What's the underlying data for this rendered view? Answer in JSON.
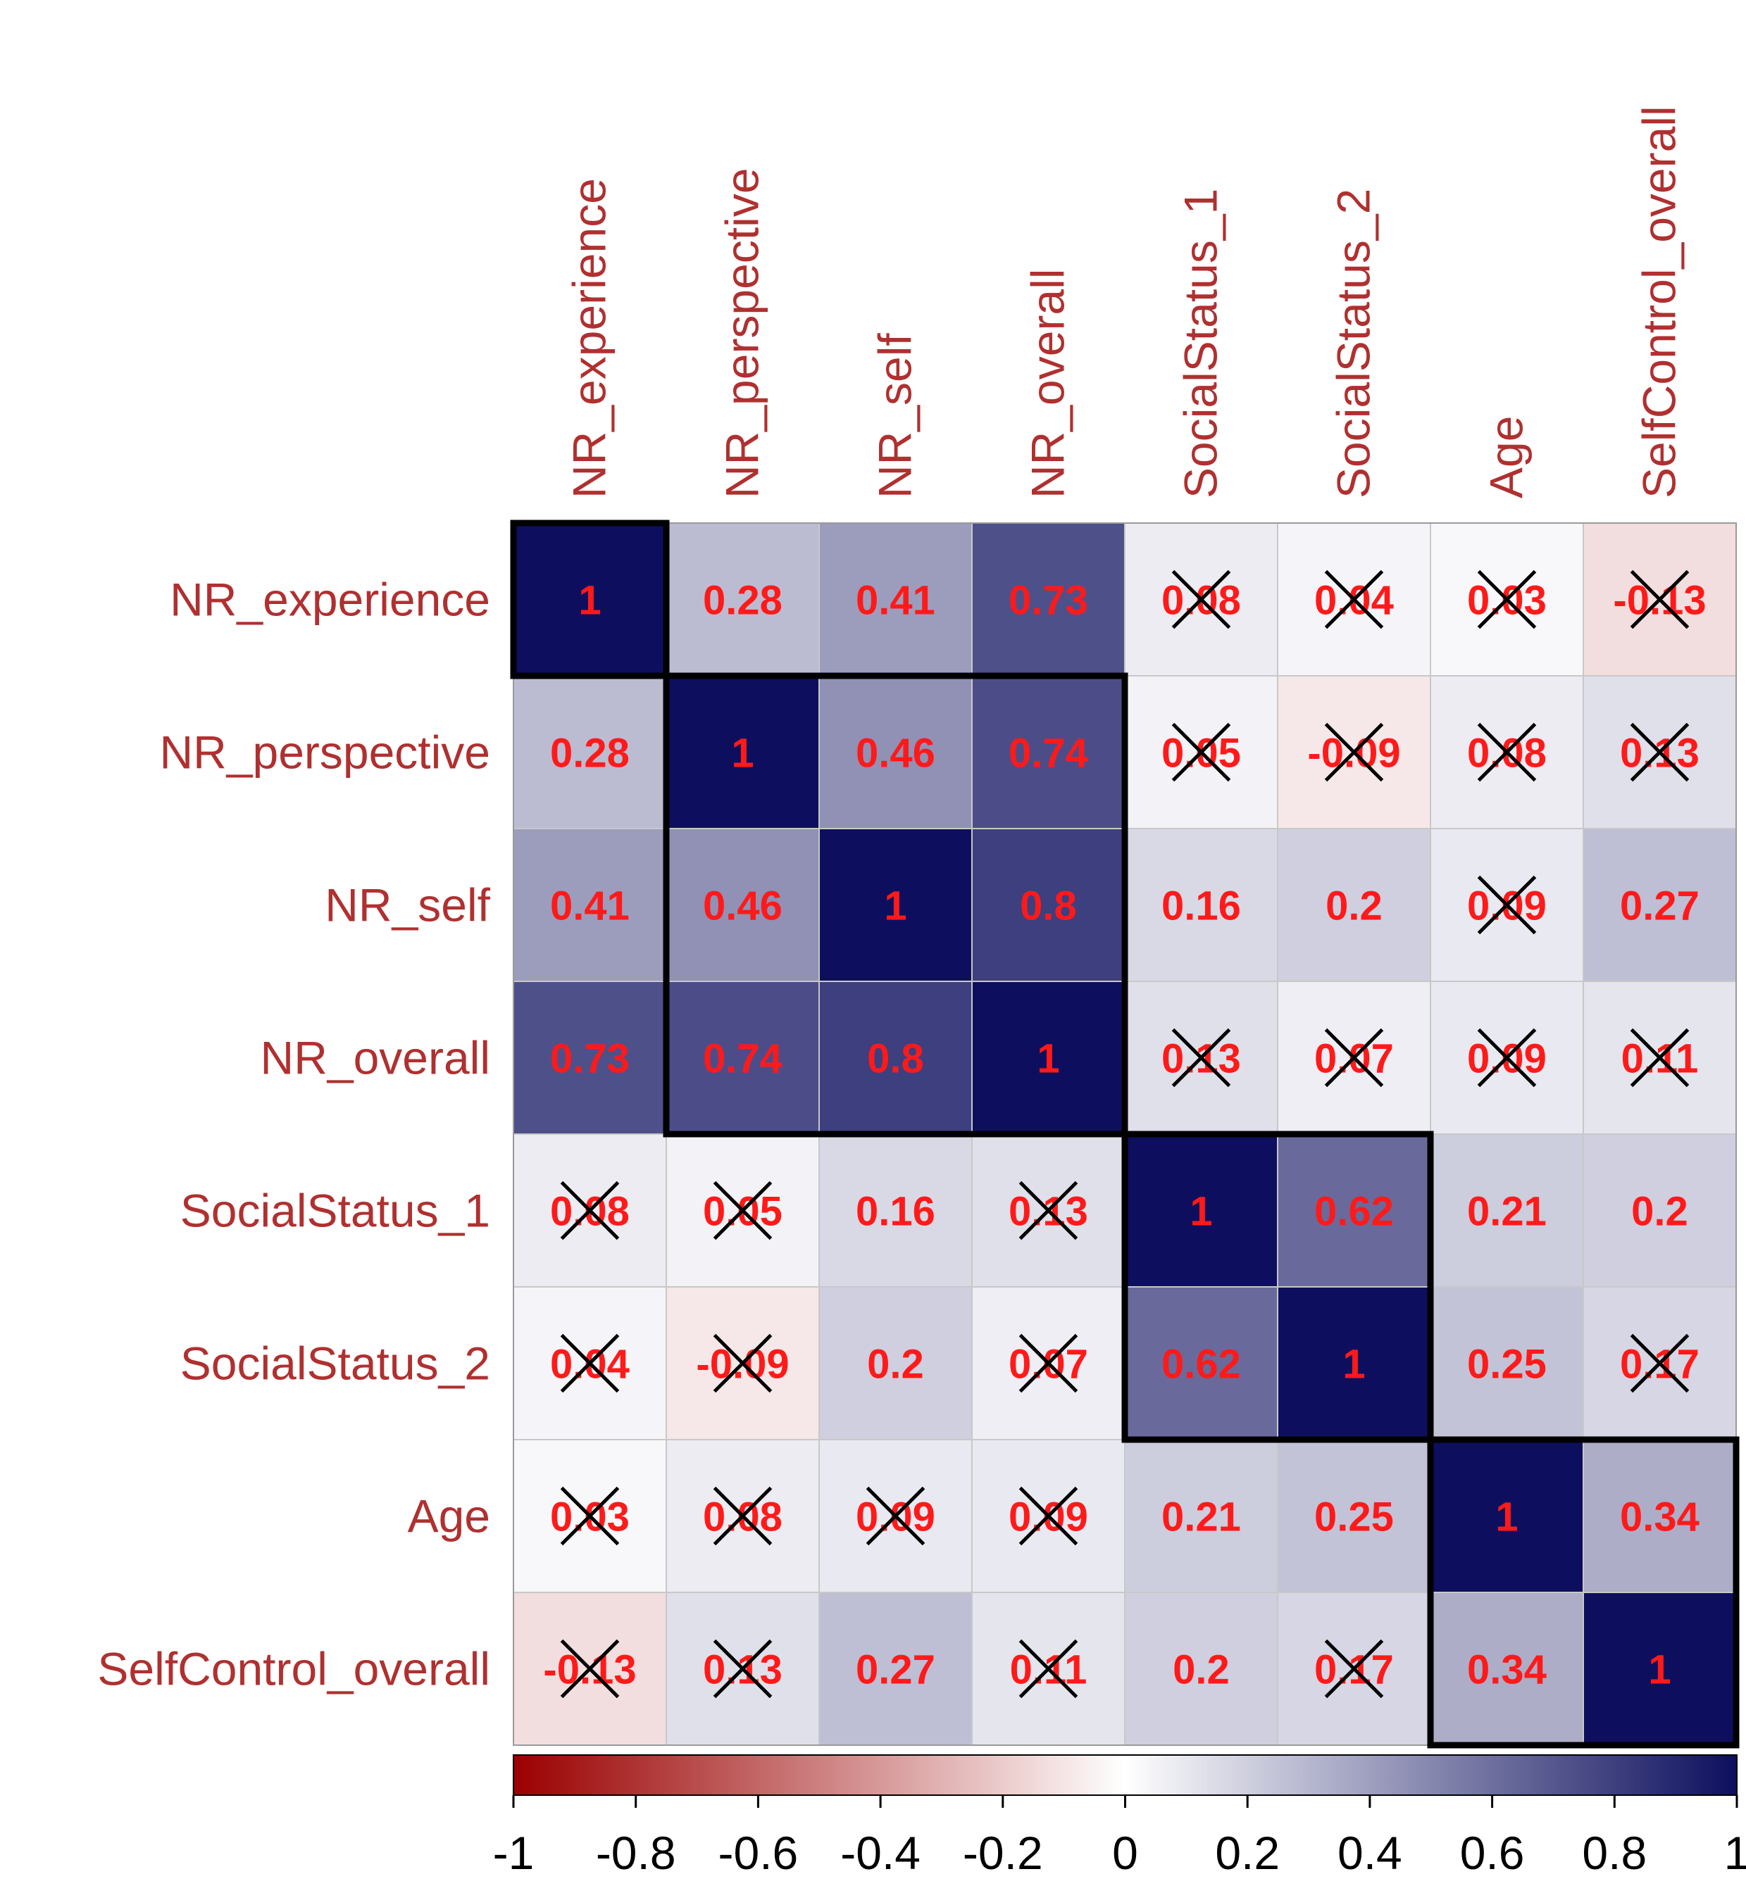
{
  "chart_data": {
    "type": "heatmap",
    "title": "",
    "variables": [
      "NR_experience",
      "NR_perspective",
      "NR_self",
      "NR_overall",
      "SocialStatus_1",
      "SocialStatus_2",
      "Age",
      "SelfControl_overall"
    ],
    "cell_labels": [
      [
        "1",
        "0.28",
        "0.41",
        "0.73",
        "0.08",
        "0.04",
        "0.03",
        "-0.13"
      ],
      [
        "0.28",
        "1",
        "0.46",
        "0.74",
        "0.05",
        "-0.09",
        "0.08",
        "0.13"
      ],
      [
        "0.41",
        "0.46",
        "1",
        "0.8",
        "0.16",
        "0.2",
        "0.09",
        "0.27"
      ],
      [
        "0.73",
        "0.74",
        "0.8",
        "1",
        "0.13",
        "0.07",
        "0.09",
        "0.11"
      ],
      [
        "0.08",
        "0.05",
        "0.16",
        "0.13",
        "1",
        "0.62",
        "0.21",
        "0.2"
      ],
      [
        "0.04",
        "-0.09",
        "0.2",
        "0.07",
        "0.62",
        "1",
        "0.25",
        "0.17"
      ],
      [
        "0.03",
        "0.08",
        "0.09",
        "0.09",
        "0.21",
        "0.25",
        "1",
        "0.34"
      ],
      [
        "-0.13",
        "0.13",
        "0.27",
        "0.11",
        "0.2",
        "0.17",
        "0.34",
        "1"
      ]
    ],
    "crossed": [
      [
        false,
        false,
        false,
        false,
        true,
        true,
        true,
        true
      ],
      [
        false,
        false,
        false,
        false,
        true,
        true,
        true,
        true
      ],
      [
        false,
        false,
        false,
        false,
        false,
        false,
        true,
        false
      ],
      [
        false,
        false,
        false,
        false,
        true,
        true,
        true,
        true
      ],
      [
        true,
        true,
        false,
        true,
        false,
        false,
        false,
        false
      ],
      [
        true,
        true,
        false,
        true,
        false,
        false,
        false,
        true
      ],
      [
        true,
        true,
        true,
        true,
        false,
        false,
        false,
        false
      ],
      [
        true,
        true,
        false,
        true,
        false,
        true,
        false,
        false
      ]
    ],
    "clusters": [
      [
        0,
        0
      ],
      [
        1,
        3
      ],
      [
        4,
        5
      ],
      [
        6,
        7
      ]
    ],
    "colorbar": {
      "range": [
        -1,
        1
      ],
      "ticks": [
        "-1",
        "-0.8",
        "-0.6",
        "-0.4",
        "-0.2",
        "0",
        "0.2",
        "0.4",
        "0.6",
        "0.8",
        "1"
      ],
      "colors": [
        "#9b0000",
        "#ffffff",
        "#0d0f5e"
      ]
    },
    "label_color": "#b03030",
    "value_color": "#ff1a1a",
    "cross_color": "#000000",
    "grid_color": "#c8c8c8"
  }
}
